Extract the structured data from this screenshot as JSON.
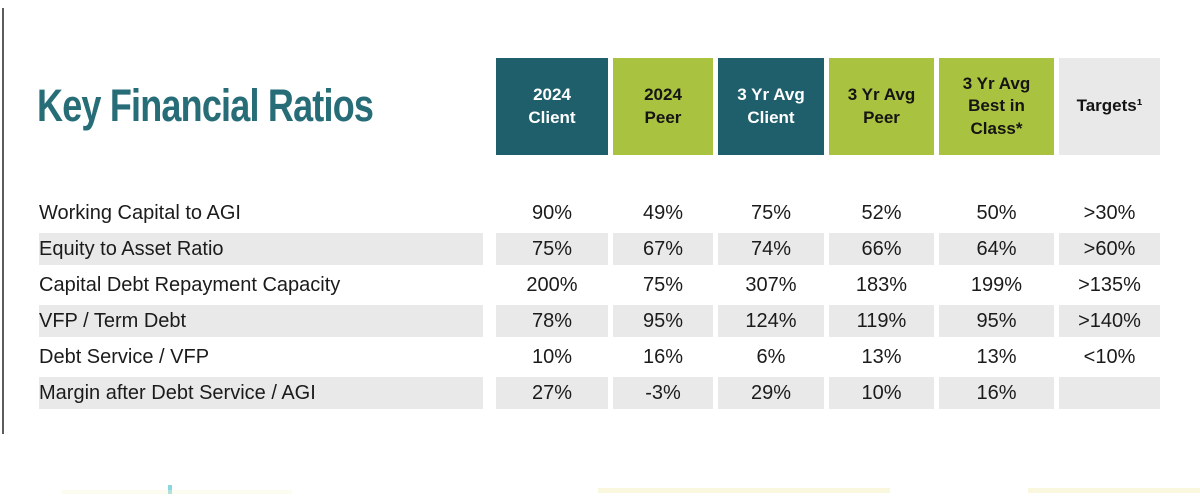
{
  "title": "Key Financial Ratios",
  "colors": {
    "title_teal": "#266d78",
    "header_teal": "#1e5f6b",
    "header_green": "#a9c23f",
    "header_gray": "#e9e9e9",
    "stripe_gray": "#e9e9e9",
    "text": "#1b1b1b"
  },
  "table": {
    "columns": [
      {
        "label": "2024\nClient",
        "style": "teal"
      },
      {
        "label": "2024\nPeer",
        "style": "green"
      },
      {
        "label": "3 Yr Avg\nClient",
        "style": "teal"
      },
      {
        "label": "3 Yr Avg\nPeer",
        "style": "green"
      },
      {
        "label": "3 Yr Avg\nBest in\nClass*",
        "style": "green"
      },
      {
        "label": "Targets¹",
        "style": "gray"
      }
    ],
    "rows": [
      {
        "label": "Working Capital to AGI",
        "values": [
          "90%",
          "49%",
          "75%",
          "52%",
          "50%",
          ">30%"
        ]
      },
      {
        "label": "Equity to Asset Ratio",
        "values": [
          "75%",
          "67%",
          "74%",
          "66%",
          "64%",
          ">60%"
        ]
      },
      {
        "label": "Capital Debt Repayment Capacity",
        "values": [
          "200%",
          "75%",
          "307%",
          "183%",
          "199%",
          ">135%"
        ]
      },
      {
        "label": "VFP / Term Debt",
        "values": [
          "78%",
          "95%",
          "124%",
          "119%",
          "95%",
          ">140%"
        ]
      },
      {
        "label": "Debt Service / VFP",
        "values": [
          "10%",
          "16%",
          "6%",
          "13%",
          "13%",
          "<10%"
        ]
      },
      {
        "label": "Margin after Debt Service / AGI",
        "values": [
          "27%",
          "-3%",
          "29%",
          "10%",
          "16%",
          ""
        ]
      }
    ]
  }
}
